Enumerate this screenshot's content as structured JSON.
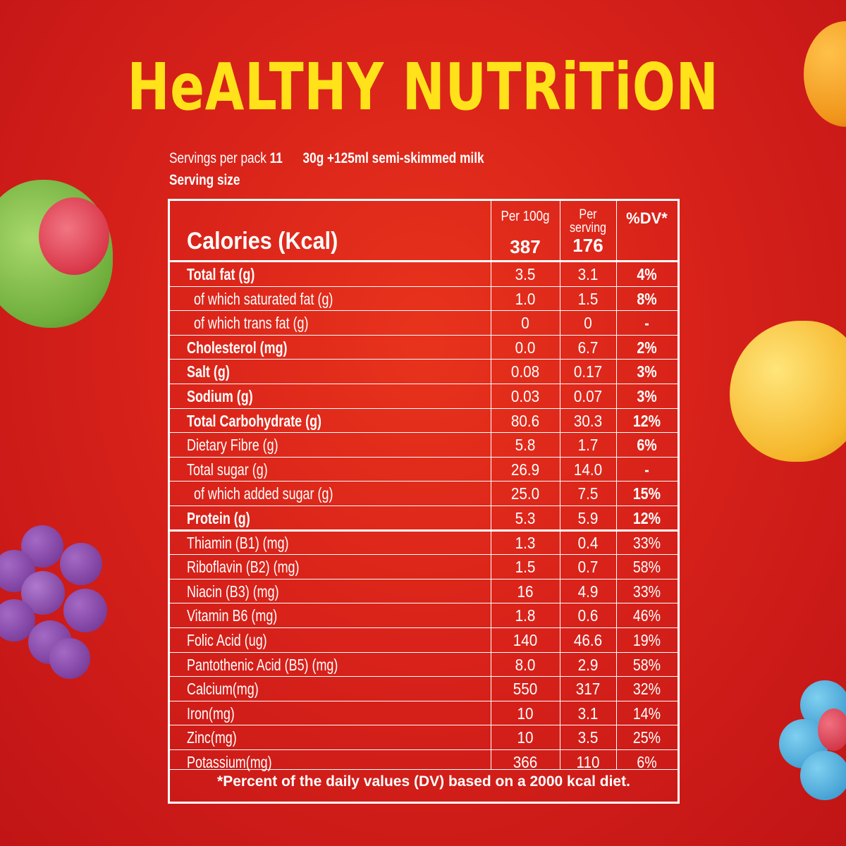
{
  "title": "HeALTHY NUTRiTiON",
  "servings": {
    "per_pack_label": "Servings  per pack",
    "per_pack_value": "11",
    "serving_desc": "30g +125ml semi-skimmed milk",
    "size_label": "Serving size"
  },
  "header": {
    "calories_label": "Calories (Kcal)",
    "col1_label": "Per 100g",
    "col2_label_line1": "Per",
    "col2_label_line2": "serving",
    "col3_label": "%DV*",
    "cal_per100": "387",
    "cal_serving": "176"
  },
  "rows": [
    {
      "name": "Total fat (g)",
      "per100": "3.5",
      "serving": "3.1",
      "dv": "4%"
    },
    {
      "name": "  of which saturated fat (g)",
      "per100": "1.0",
      "serving": "1.5",
      "dv": "8%"
    },
    {
      "name": "  of which trans fat (g)",
      "per100": "0",
      "serving": "0",
      "dv": "-"
    },
    {
      "name": "Cholesterol (mg)",
      "per100": "0.0",
      "serving": "6.7",
      "dv": "2%"
    },
    {
      "name": "Salt (g)",
      "per100": "0.08",
      "serving": "0.17",
      "dv": "3%"
    },
    {
      "name": "Sodium (g)",
      "per100": "0.03",
      "serving": "0.07",
      "dv": "3%"
    },
    {
      "name": "Total Carbohydrate (g)",
      "per100": "80.6",
      "serving": "30.3",
      "dv": "12%"
    },
    {
      "name": "Dietary Fibre (g)",
      "per100": "5.8",
      "serving": "1.7",
      "dv": "6%"
    },
    {
      "name": "Total sugar (g)",
      "per100": "26.9",
      "serving": "14.0",
      "dv": "-"
    },
    {
      "name": "  of which added sugar (g)",
      "per100": "25.0",
      "serving": "7.5",
      "dv": "15%"
    },
    {
      "name": "Protein (g)",
      "per100": "5.3",
      "serving": "5.9",
      "dv": "12%"
    },
    {
      "name": "Thiamin (B1) (mg)",
      "per100": "1.3",
      "serving": "0.4",
      "dv": "33%"
    },
    {
      "name": "Riboflavin (B2) (mg)",
      "per100": "1.5",
      "serving": "0.7",
      "dv": "58%"
    },
    {
      "name": "Niacin (B3) (mg)",
      "per100": "16",
      "serving": "4.9",
      "dv": "33%"
    },
    {
      "name": "Vitamin B6 (mg)",
      "per100": "1.8",
      "serving": "0.6",
      "dv": "46%"
    },
    {
      "name": "Folic Acid (ug)",
      "per100": "140",
      "serving": "46.6",
      "dv": "19%"
    },
    {
      "name": "Pantothenic Acid (B5) (mg)",
      "per100": "8.0",
      "serving": "2.9",
      "dv": "58%"
    },
    {
      "name": "Calcium(mg)",
      "per100": "550",
      "serving": "317",
      "dv": "32%"
    },
    {
      "name": "Iron(mg)",
      "per100": "10",
      "serving": "3.1",
      "dv": "14%"
    },
    {
      "name": "Zinc(mg)",
      "per100": "10",
      "serving": "3.5",
      "dv": "25%"
    },
    {
      "name": "Potassium(mg)",
      "per100": "366",
      "serving": "110",
      "dv": "6%"
    }
  ],
  "footnote": "*Percent of the daily values (DV) based on a 2000 kcal diet.",
  "colors": {
    "background": "#d8221a",
    "title": "#ffe21a",
    "lines": "#ffffff"
  }
}
